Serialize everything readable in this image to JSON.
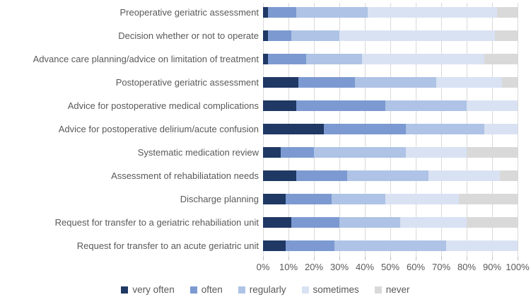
{
  "chart_data": {
    "type": "bar",
    "orientation": "horizontal",
    "stacked": true,
    "stacked_total": 100,
    "title": "",
    "xlabel": "",
    "ylabel": "",
    "categories": [
      "Preoperative geriatric assessment",
      "Decision whether or not to operate",
      "Advance care planning/advice on limitation of treatment",
      "Postoperative geriatric assessment",
      "Advice for postoperative medical complications",
      "Advice for postoperative delirium/acute confusion",
      "Systematic medication review",
      "Assessment of rehabiliatation needs",
      "Discharge planning",
      "Request for transfer to a geriatric rehabiliation unit",
      "Request for transfer to an acute geriatric unit"
    ],
    "series": [
      {
        "name": "very often",
        "color": "#1F3864",
        "values": [
          2,
          2,
          2,
          14,
          13,
          24,
          7,
          13,
          9,
          11,
          9
        ]
      },
      {
        "name": "often",
        "color": "#7C9AD1",
        "values": [
          11,
          9,
          15,
          22,
          35,
          32,
          13,
          20,
          18,
          19,
          19
        ]
      },
      {
        "name": "regularly",
        "color": "#AEC3E5",
        "values": [
          28,
          19,
          22,
          32,
          32,
          31,
          36,
          32,
          21,
          24,
          44
        ]
      },
      {
        "name": "sometimes",
        "color": "#D9E2F3",
        "values": [
          51,
          61,
          48,
          26,
          20,
          13,
          24,
          28,
          29,
          26,
          28
        ]
      },
      {
        "name": "never",
        "color": "#D9D9D9",
        "values": [
          8,
          9,
          13,
          6,
          0,
          0,
          20,
          7,
          23,
          20,
          0
        ]
      }
    ],
    "x_axis": {
      "min": 0,
      "max": 100,
      "tick_step": 10,
      "tick_labels": [
        "0%",
        "10%",
        "20%",
        "30%",
        "40%",
        "50%",
        "60%",
        "70%",
        "80%",
        "90%",
        "100%"
      ]
    },
    "legend": {
      "position": "bottom",
      "items": [
        "very often",
        "often",
        "regularly",
        "sometimes",
        "never"
      ]
    },
    "grid": true,
    "gridline_color": "#D9D9D9",
    "tick_color": "#BFBFBF",
    "text_color": "#595959"
  }
}
